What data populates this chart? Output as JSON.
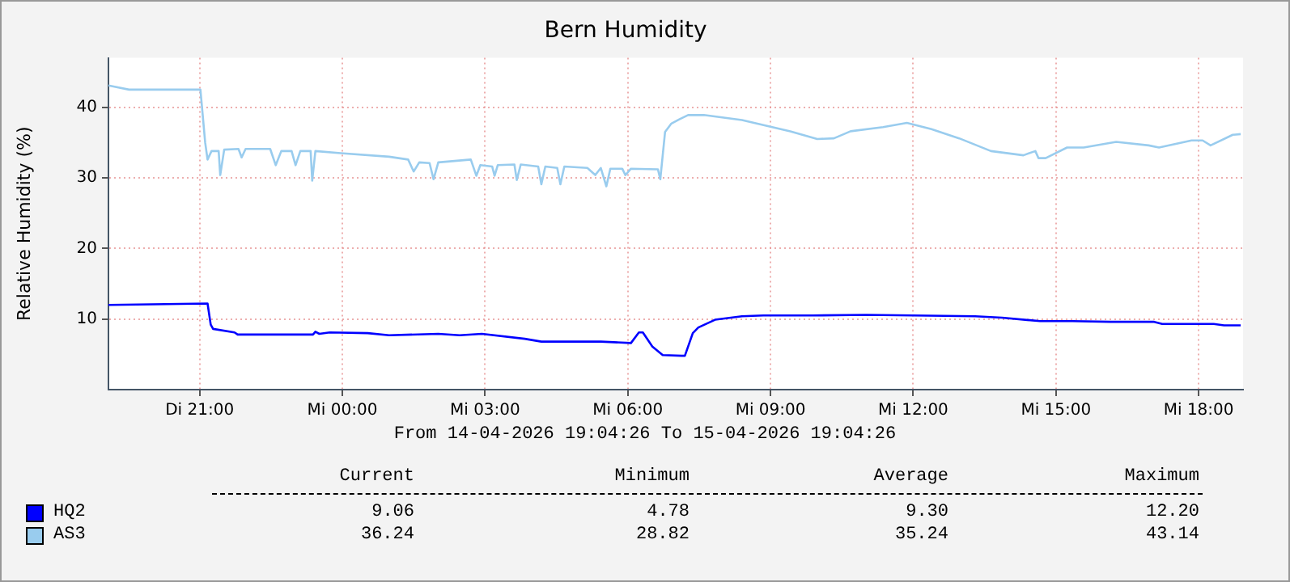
{
  "chart_data": {
    "type": "line",
    "title": "Bern Humidity",
    "ylabel": "Relative Humidity (%)",
    "xlim": [
      "2026-04-14T19:05",
      "2026-04-15T18:56"
    ],
    "xticks": [
      {
        "value": "2026-04-14T21:00",
        "label": "Di 21:00"
      },
      {
        "value": "2026-04-15T00:00",
        "label": "Mi 00:00"
      },
      {
        "value": "2026-04-15T03:00",
        "label": "Mi 03:00"
      },
      {
        "value": "2026-04-15T06:00",
        "label": "Mi 06:00"
      },
      {
        "value": "2026-04-15T09:00",
        "label": "Mi 09:00"
      },
      {
        "value": "2026-04-15T12:00",
        "label": "Mi 12:00"
      },
      {
        "value": "2026-04-15T15:00",
        "label": "Mi 15:00"
      },
      {
        "value": "2026-04-15T18:00",
        "label": "Mi 18:00"
      }
    ],
    "ylim": [
      0,
      47
    ],
    "yticks": [
      10,
      20,
      30,
      40
    ],
    "grid": true,
    "legend": "bottom left",
    "marker": "none",
    "line_style": "solid",
    "series": [
      {
        "name": "HQ2",
        "color": "#0000ff",
        "x": [
          "2026-04-14T19:05",
          "2026-04-14T21:10",
          "2026-04-14T21:14",
          "2026-04-14T21:17",
          "2026-04-14T21:44",
          "2026-04-14T21:48",
          "2026-04-14T23:23",
          "2026-04-14T23:26",
          "2026-04-14T23:31",
          "2026-04-14T23:44",
          "2026-04-15T00:32",
          "2026-04-15T00:59",
          "2026-04-15T02:01",
          "2026-04-15T02:28",
          "2026-04-15T02:56",
          "2026-04-15T03:50",
          "2026-04-15T04:11",
          "2026-04-15T05:26",
          "2026-04-15T06:04",
          "2026-04-15T06:14",
          "2026-04-15T06:19",
          "2026-04-15T06:31",
          "2026-04-15T06:44",
          "2026-04-15T07:08",
          "2026-04-15T07:12",
          "2026-04-15T07:22",
          "2026-04-15T07:29",
          "2026-04-15T07:50",
          "2026-04-15T08:24",
          "2026-04-15T08:51",
          "2026-04-15T09:53",
          "2026-04-15T11:01",
          "2026-04-15T13:18",
          "2026-04-15T13:52",
          "2026-04-15T14:40",
          "2026-04-15T15:21",
          "2026-04-15T16:09",
          "2026-04-15T17:04",
          "2026-04-15T17:14",
          "2026-04-15T18:19",
          "2026-04-15T18:32",
          "2026-04-15T18:53"
        ],
        "values": [
          12.0,
          12.2,
          9.2,
          8.6,
          8.1,
          7.8,
          7.8,
          8.2,
          7.9,
          8.1,
          8.0,
          7.7,
          7.9,
          7.7,
          7.9,
          7.2,
          6.8,
          6.8,
          6.6,
          8.1,
          8.1,
          6.1,
          4.9,
          4.8,
          4.8,
          8.0,
          8.8,
          9.9,
          10.4,
          10.5,
          10.5,
          10.6,
          10.4,
          10.2,
          9.7,
          9.7,
          9.6,
          9.6,
          9.3,
          9.3,
          9.1,
          9.1
        ]
      },
      {
        "name": "AS3",
        "color": "#99ccee",
        "x": [
          "2026-04-14T19:05",
          "2026-04-14T19:31",
          "2026-04-14T21:01",
          "2026-04-14T21:07",
          "2026-04-14T21:10",
          "2026-04-14T21:15",
          "2026-04-14T21:24",
          "2026-04-14T21:26",
          "2026-04-14T21:31",
          "2026-04-14T21:49",
          "2026-04-14T21:53",
          "2026-04-14T21:58",
          "2026-04-14T22:29",
          "2026-04-14T22:36",
          "2026-04-14T22:43",
          "2026-04-14T22:56",
          "2026-04-14T23:01",
          "2026-04-14T23:07",
          "2026-04-14T23:20",
          "2026-04-14T23:22",
          "2026-04-14T23:26",
          "2026-04-14T23:58",
          "2026-04-15T00:59",
          "2026-04-15T01:23",
          "2026-04-15T01:30",
          "2026-04-15T01:37",
          "2026-04-15T01:50",
          "2026-04-15T01:55",
          "2026-04-15T02:01",
          "2026-04-15T02:42",
          "2026-04-15T02:49",
          "2026-04-15T02:54",
          "2026-04-15T03:09",
          "2026-04-15T03:12",
          "2026-04-15T03:16",
          "2026-04-15T03:37",
          "2026-04-15T03:40",
          "2026-04-15T03:45",
          "2026-04-15T04:07",
          "2026-04-15T04:11",
          "2026-04-15T04:16",
          "2026-04-15T04:31",
          "2026-04-15T04:35",
          "2026-04-15T04:40",
          "2026-04-15T05:09",
          "2026-04-15T05:19",
          "2026-04-15T05:26",
          "2026-04-15T05:33",
          "2026-04-15T05:38",
          "2026-04-15T05:53",
          "2026-04-15T05:57",
          "2026-04-15T06:04",
          "2026-04-15T06:38",
          "2026-04-15T06:41",
          "2026-04-15T06:47",
          "2026-04-15T06:55",
          "2026-04-15T07:05",
          "2026-04-15T07:16",
          "2026-04-15T07:36",
          "2026-04-15T08:24",
          "2026-04-15T09:25",
          "2026-04-15T09:59",
          "2026-04-15T10:20",
          "2026-04-15T10:41",
          "2026-04-15T11:22",
          "2026-04-15T11:52",
          "2026-04-15T12:23",
          "2026-04-15T12:58",
          "2026-04-15T13:38",
          "2026-04-15T14:19",
          "2026-04-15T14:34",
          "2026-04-15T14:38",
          "2026-04-15T14:47",
          "2026-04-15T15:14",
          "2026-04-15T15:35",
          "2026-04-15T16:16",
          "2026-04-15T16:57",
          "2026-04-15T17:10",
          "2026-04-15T17:51",
          "2026-04-15T18:05",
          "2026-04-15T18:15",
          "2026-04-15T18:43",
          "2026-04-15T18:53"
        ],
        "values": [
          43.1,
          42.5,
          42.5,
          35.0,
          32.6,
          33.8,
          33.8,
          30.4,
          34.0,
          34.1,
          32.9,
          34.1,
          34.1,
          31.8,
          33.8,
          33.8,
          31.8,
          33.8,
          33.8,
          29.6,
          33.8,
          33.5,
          33.0,
          32.6,
          30.9,
          32.2,
          32.1,
          29.8,
          32.2,
          32.6,
          30.3,
          31.8,
          31.6,
          30.3,
          31.8,
          31.9,
          29.7,
          31.9,
          31.6,
          29.1,
          31.6,
          31.4,
          29.1,
          31.6,
          31.4,
          30.4,
          31.4,
          28.8,
          31.3,
          31.3,
          30.4,
          31.3,
          31.2,
          29.8,
          36.5,
          37.7,
          38.3,
          38.9,
          38.9,
          38.2,
          36.6,
          35.5,
          35.6,
          36.6,
          37.2,
          37.8,
          36.9,
          35.6,
          33.8,
          33.2,
          33.8,
          32.8,
          32.8,
          34.3,
          34.3,
          35.1,
          34.6,
          34.3,
          35.3,
          35.3,
          34.6,
          36.1,
          36.2
        ]
      }
    ],
    "annotations": [
      "From 14-04-2026 19:04:26 To 15-04-2026 19:04:26",
      "Current",
      "Minimum",
      "Average",
      "Maximum",
      "9.06",
      "4.78",
      "9.30",
      "12.20",
      "36.24",
      "28.82",
      "35.24",
      "43.14"
    ]
  }
}
